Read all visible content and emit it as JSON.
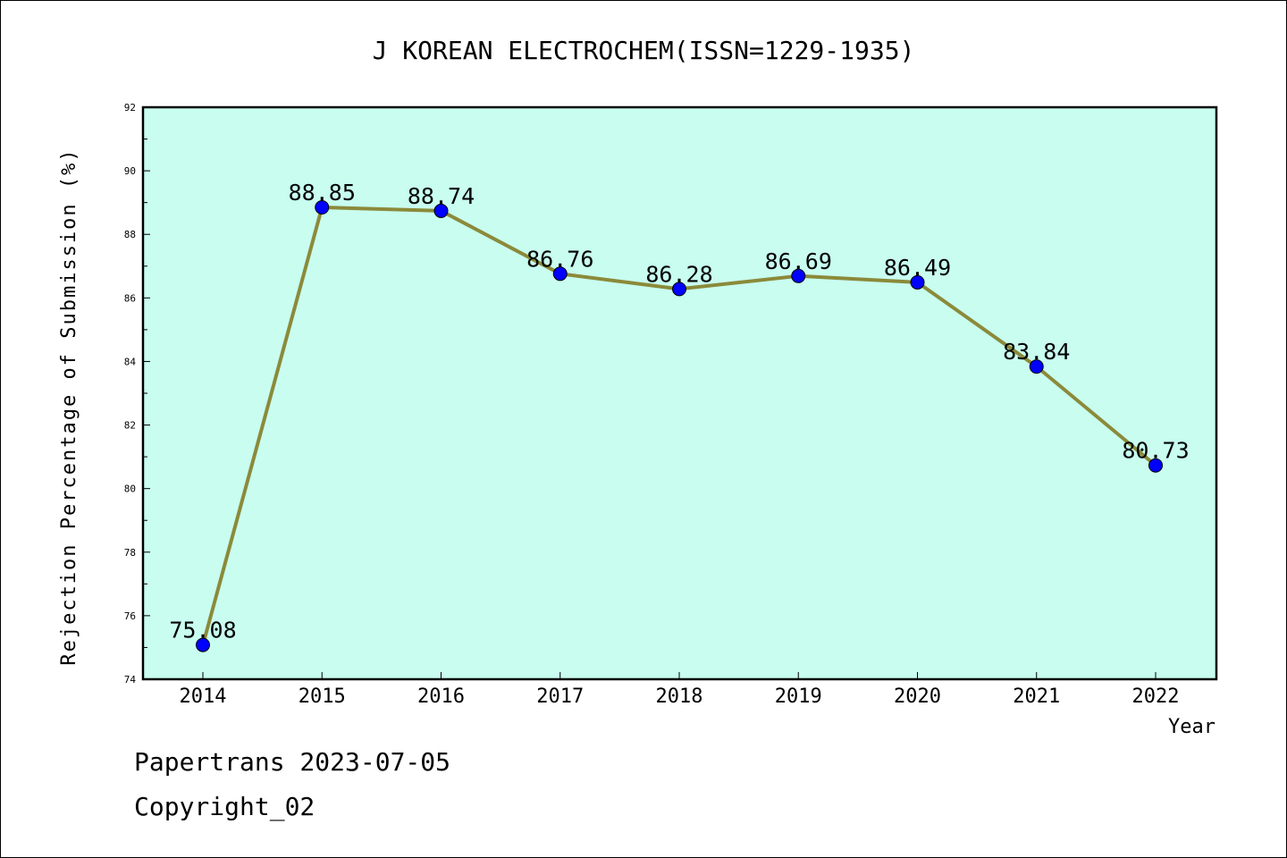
{
  "chart_data": {
    "type": "line",
    "title": "J KOREAN ELECTROCHEM(ISSN=1229-1935)",
    "xlabel": "Year",
    "ylabel": "Rejection Percentage of Submission (%)",
    "categories": [
      "2014",
      "2015",
      "2016",
      "2017",
      "2018",
      "2019",
      "2020",
      "2021",
      "2022"
    ],
    "values": [
      75.08,
      88.85,
      88.74,
      86.76,
      86.28,
      86.69,
      86.49,
      83.84,
      80.73
    ],
    "data_labels": [
      "75.08",
      "88.85",
      "88.74",
      "86.76",
      "86.28",
      "86.69",
      "86.49",
      "83.84",
      "80.73"
    ],
    "ylim": [
      74,
      92
    ],
    "yticks": [
      74,
      76,
      78,
      80,
      82,
      84,
      86,
      88,
      90,
      92
    ],
    "grid": false,
    "legend": "none",
    "colors": {
      "plot_background": "#c8fdf0",
      "line": "#8b8a3a",
      "marker": "#0000ff"
    }
  },
  "footer": {
    "line1": "Papertrans 2023-07-05",
    "line2": "Copyright_02"
  }
}
